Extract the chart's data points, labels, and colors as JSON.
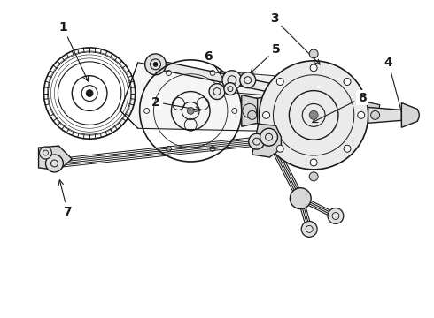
{
  "background_color": "#ffffff",
  "line_color": "#1a1a1a",
  "figsize": [
    4.9,
    3.6
  ],
  "dpi": 100,
  "label_fontsize": 10
}
